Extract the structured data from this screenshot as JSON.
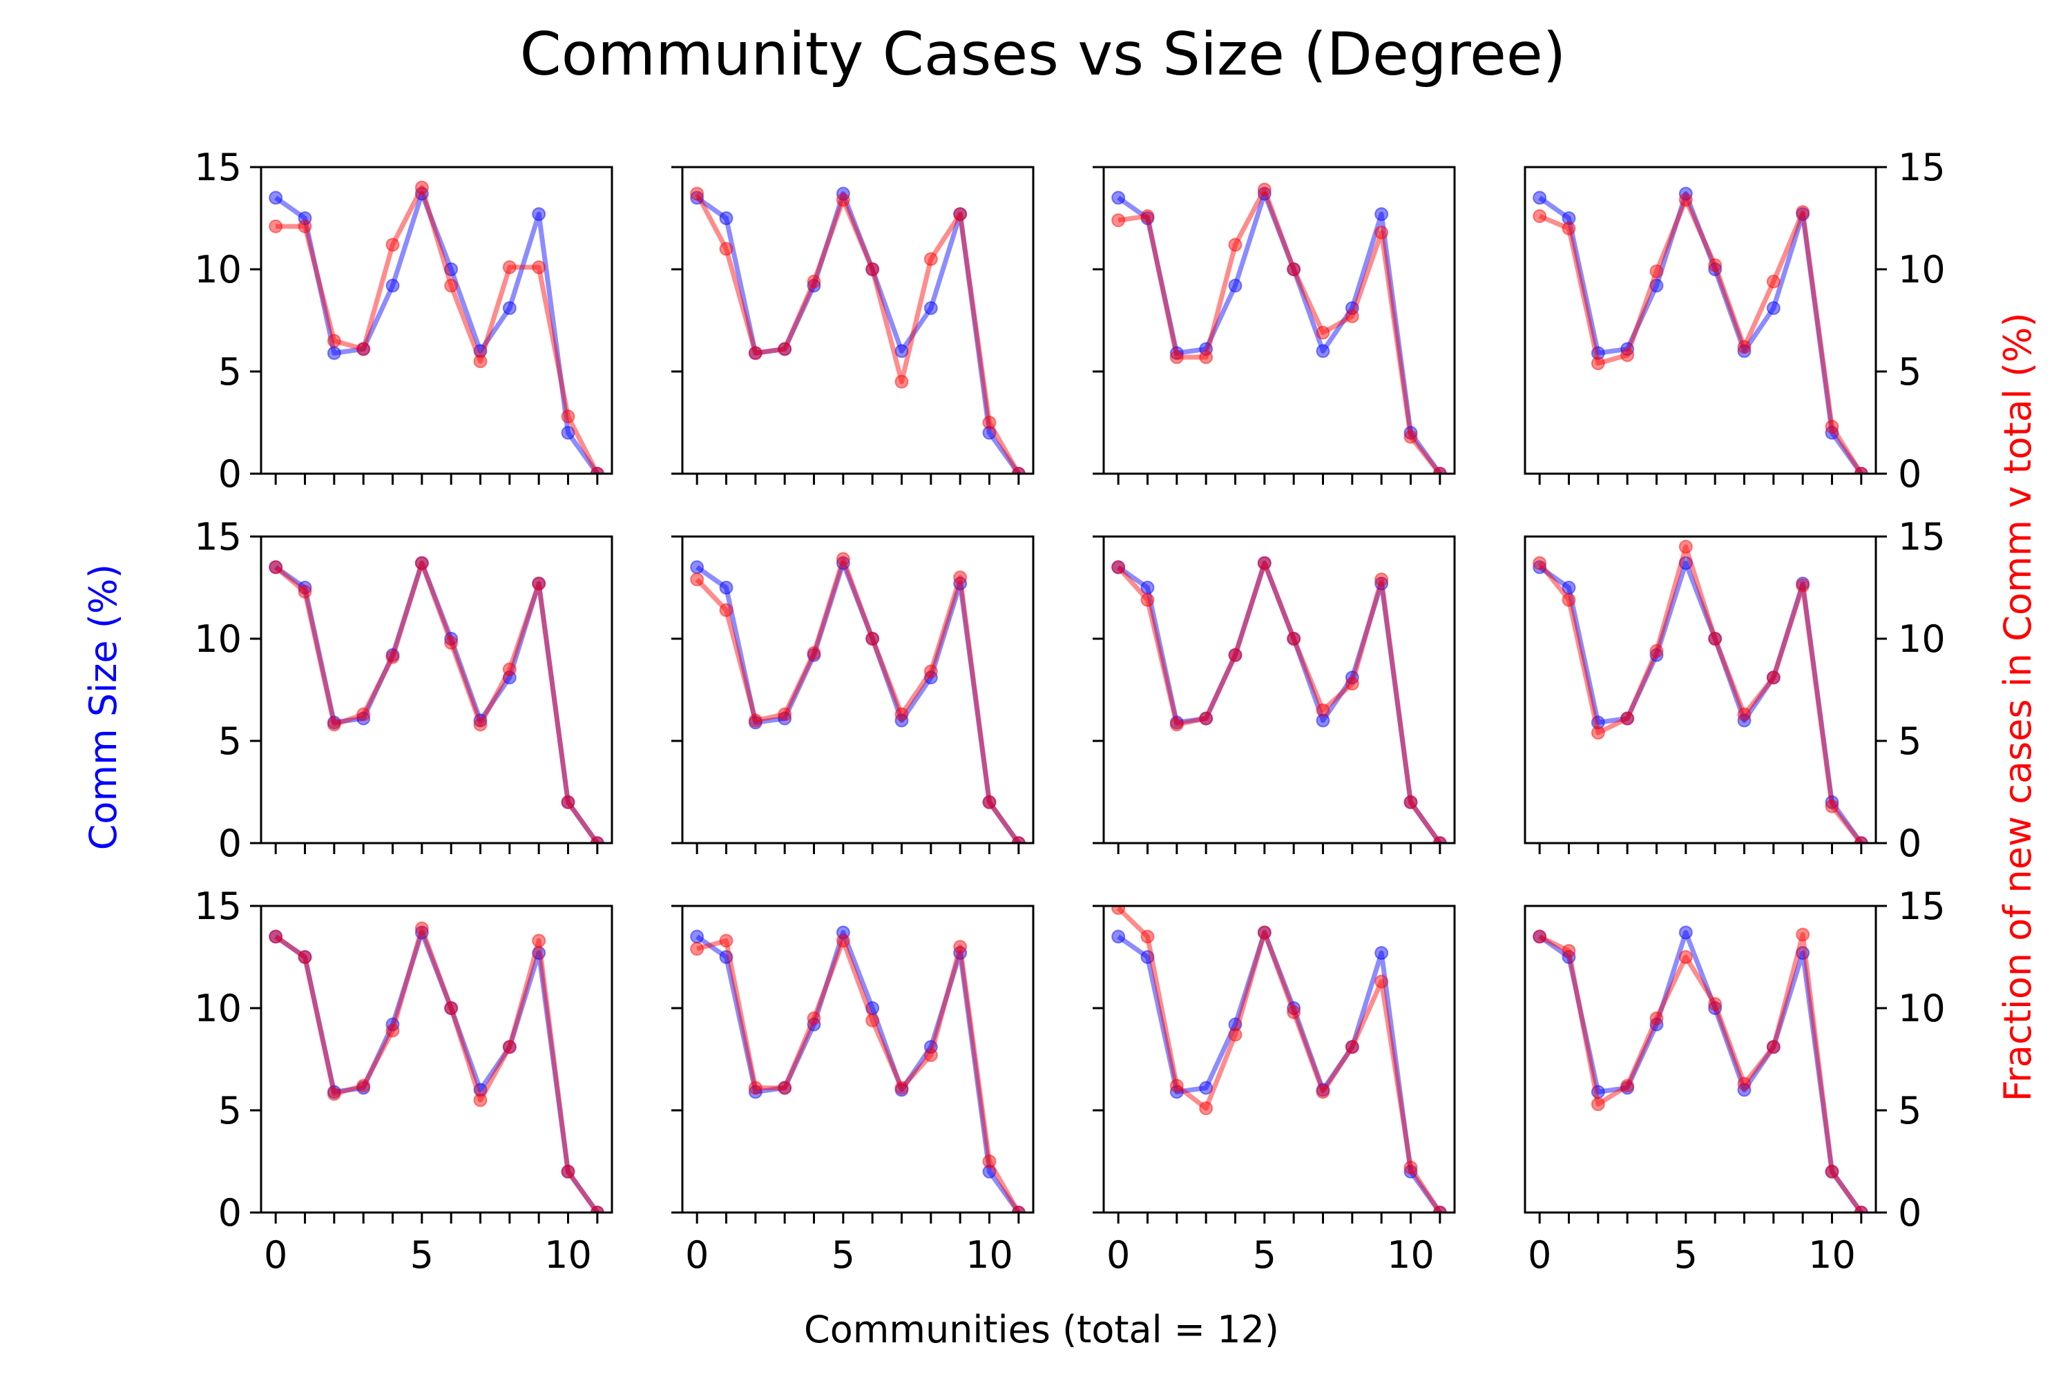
{
  "figure": {
    "title": "Community Cases vs Size (Degree)",
    "xlabel": "Communities (total = 12)",
    "ylabel_left": "Comm Size (%)",
    "ylabel_right": "Fraction of new cases in Comm v total (%)"
  },
  "colors": {
    "size_series": "#0000ff",
    "cases_series": "#ff0000",
    "left_label": "#0000ff",
    "right_label": "#ff0000"
  },
  "chart_data": {
    "type": "line",
    "grid": false,
    "layout": "3 rows x 4 columns of subplots",
    "x": [
      0,
      1,
      2,
      3,
      4,
      5,
      6,
      7,
      8,
      9,
      10,
      11
    ],
    "xticks": [
      0,
      5,
      10
    ],
    "xlim": [
      -0.5,
      11.5
    ],
    "ylim": [
      0,
      15
    ],
    "yticks": [
      0,
      5,
      10,
      15
    ],
    "size_values": [
      13.5,
      12.5,
      5.9,
      6.1,
      9.2,
      13.7,
      10.0,
      6.0,
      8.1,
      12.7,
      2.0,
      0.0
    ],
    "panels": [
      {
        "cases_values": [
          12.1,
          12.1,
          6.5,
          6.1,
          11.2,
          14.0,
          9.2,
          5.5,
          10.1,
          10.1,
          2.8,
          0.0
        ]
      },
      {
        "cases_values": [
          13.7,
          11.0,
          5.9,
          6.1,
          9.4,
          13.4,
          10.0,
          4.5,
          10.5,
          12.7,
          2.5,
          0.0
        ]
      },
      {
        "cases_values": [
          12.4,
          12.6,
          5.7,
          5.7,
          11.2,
          13.9,
          10.0,
          6.9,
          7.7,
          11.8,
          1.8,
          0.0
        ]
      },
      {
        "cases_values": [
          12.6,
          12.0,
          5.4,
          5.8,
          9.9,
          13.4,
          10.2,
          6.2,
          9.4,
          12.8,
          2.3,
          0.0
        ]
      },
      {
        "cases_values": [
          13.5,
          12.3,
          5.8,
          6.3,
          9.1,
          13.7,
          9.8,
          5.8,
          8.5,
          12.7,
          2.0,
          0.0
        ]
      },
      {
        "cases_values": [
          12.9,
          11.4,
          6.0,
          6.3,
          9.3,
          13.9,
          10.0,
          6.3,
          8.4,
          13.0,
          2.0,
          0.0
        ]
      },
      {
        "cases_values": [
          13.5,
          11.9,
          5.8,
          6.1,
          9.2,
          13.7,
          10.0,
          6.5,
          7.8,
          12.9,
          2.0,
          0.0
        ]
      },
      {
        "cases_values": [
          13.7,
          11.9,
          5.4,
          6.1,
          9.4,
          14.5,
          10.0,
          6.3,
          8.1,
          12.6,
          1.8,
          0.0
        ]
      },
      {
        "cases_values": [
          13.5,
          12.5,
          5.8,
          6.2,
          8.9,
          13.9,
          10.0,
          5.5,
          8.1,
          13.3,
          2.0,
          0.0
        ]
      },
      {
        "cases_values": [
          12.9,
          13.3,
          6.1,
          6.1,
          9.5,
          13.3,
          9.4,
          6.1,
          7.7,
          13.0,
          2.5,
          0.0
        ]
      },
      {
        "cases_values": [
          14.9,
          13.5,
          6.2,
          5.1,
          8.7,
          13.7,
          9.8,
          5.9,
          8.1,
          11.3,
          2.2,
          0.0
        ]
      },
      {
        "cases_values": [
          13.5,
          12.8,
          5.3,
          6.2,
          9.5,
          12.5,
          10.2,
          6.3,
          8.1,
          13.6,
          2.0,
          0.0
        ]
      }
    ]
  }
}
